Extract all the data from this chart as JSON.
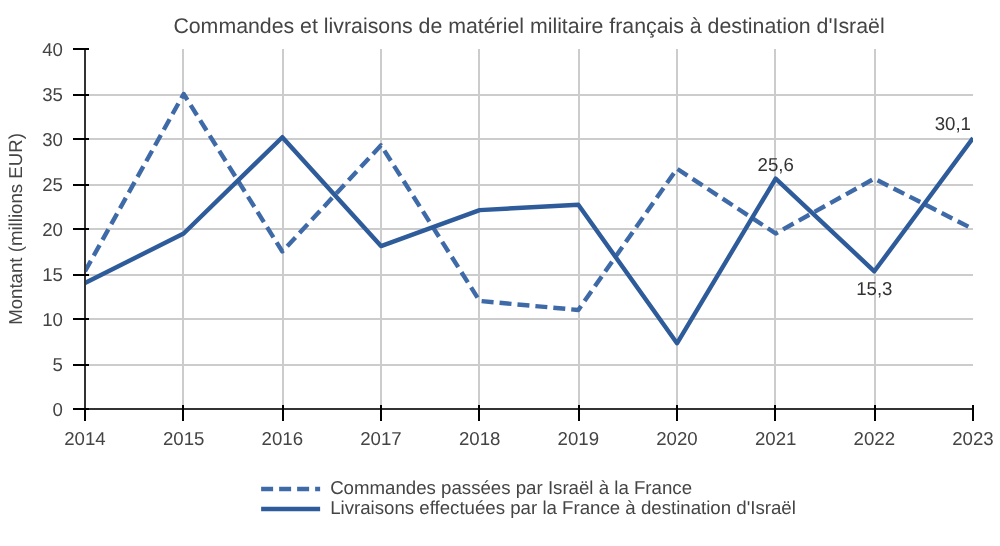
{
  "chart_data": {
    "type": "line",
    "title": "Commandes et livraisons de matériel militaire français à destination d'Israël",
    "ylabel": "Montant (millions EUR)",
    "x": [
      2014,
      2015,
      2016,
      2017,
      2018,
      2019,
      2020,
      2021,
      2022,
      2023
    ],
    "xlim": [
      2014,
      2023
    ],
    "xticks": [
      2014,
      2015,
      2016,
      2017,
      2018,
      2019,
      2020,
      2021,
      2022,
      2023
    ],
    "ylim": [
      0,
      40
    ],
    "yticks": [
      0,
      5,
      10,
      15,
      20,
      25,
      30,
      35,
      40
    ],
    "grid": true,
    "legend": "bottom",
    "marker": "none",
    "series": [
      {
        "name": "Commandes passées par Israël à la France",
        "color": "#3f6aa8",
        "line_style": "dashed",
        "values": [
          15.3,
          35,
          17.5,
          29.3,
          12,
          11,
          26.7,
          19.5,
          25.6,
          20
        ]
      },
      {
        "name": "Livraisons effectuées par la France à destination d'Israël",
        "color": "#2e5b9a",
        "line_style": "solid",
        "values": [
          14,
          19.5,
          30.2,
          18.1,
          22.1,
          22.7,
          7.3,
          25.6,
          15.3,
          30.1
        ],
        "value_labels": [
          null,
          null,
          null,
          null,
          null,
          null,
          null,
          "25,6",
          "15,3",
          "30,1"
        ]
      }
    ]
  }
}
